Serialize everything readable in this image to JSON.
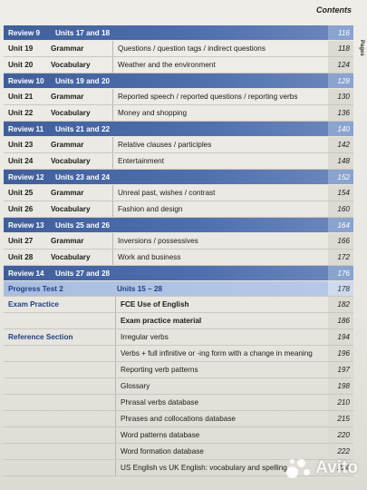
{
  "header": {
    "contents_title": "Contents",
    "side_tab": "Pages"
  },
  "rows": [
    {
      "kind": "review",
      "label": "Review 9",
      "units": "Units 17 and 18",
      "page": "116"
    },
    {
      "kind": "unit",
      "unit": "Unit 19",
      "type": "Grammar",
      "topic": "Questions / question tags / indirect questions",
      "page": "118"
    },
    {
      "kind": "unit",
      "unit": "Unit 20",
      "type": "Vocabulary",
      "topic": "Weather and the environment",
      "page": "124"
    },
    {
      "kind": "review",
      "label": "Review 10",
      "units": "Units 19 and 20",
      "page": "128"
    },
    {
      "kind": "unit",
      "unit": "Unit 21",
      "type": "Grammar",
      "topic": "Reported speech / reported questions / reporting verbs",
      "page": "130"
    },
    {
      "kind": "unit",
      "unit": "Unit 22",
      "type": "Vocabulary",
      "topic": "Money and shopping",
      "page": "136"
    },
    {
      "kind": "review",
      "label": "Review 11",
      "units": "Units 21 and 22",
      "page": "140"
    },
    {
      "kind": "unit",
      "unit": "Unit 23",
      "type": "Grammar",
      "topic": "Relative clauses / participles",
      "page": "142"
    },
    {
      "kind": "unit",
      "unit": "Unit 24",
      "type": "Vocabulary",
      "topic": "Entertainment",
      "page": "148"
    },
    {
      "kind": "review",
      "label": "Review 12",
      "units": "Units 23 and 24",
      "page": "152"
    },
    {
      "kind": "unit",
      "unit": "Unit 25",
      "type": "Grammar",
      "topic": "Unreal past, wishes / contrast",
      "page": "154"
    },
    {
      "kind": "unit",
      "unit": "Unit 26",
      "type": "Vocabulary",
      "topic": "Fashion and design",
      "page": "160"
    },
    {
      "kind": "review",
      "label": "Review 13",
      "units": "Units 25 and 26",
      "page": "164"
    },
    {
      "kind": "unit",
      "unit": "Unit 27",
      "type": "Grammar",
      "topic": "Inversions / possessives",
      "page": "166"
    },
    {
      "kind": "unit",
      "unit": "Unit 28",
      "type": "Vocabulary",
      "topic": "Work and business",
      "page": "172"
    },
    {
      "kind": "review",
      "label": "Review 14",
      "units": "Units 27 and 28",
      "page": "176"
    },
    {
      "kind": "progress",
      "label": "Progress Test 2",
      "units": "Units 15 – 28",
      "page": "178"
    },
    {
      "kind": "section",
      "left": "Exam Practice",
      "topic": "FCE Use of English",
      "bold": true,
      "page": "182"
    },
    {
      "kind": "section",
      "left": "",
      "topic": "Exam practice material",
      "bold": true,
      "page": "186"
    },
    {
      "kind": "section",
      "left": "Reference Section",
      "topic": "Irregular verbs",
      "bold": false,
      "page": "194"
    },
    {
      "kind": "section",
      "left": "",
      "topic": "Verbs + full infinitive or -ing form with a change in meaning",
      "bold": false,
      "page": "196"
    },
    {
      "kind": "section",
      "left": "",
      "topic": "Reporting verb patterns",
      "bold": false,
      "page": "197"
    },
    {
      "kind": "section",
      "left": "",
      "topic": "Glossary",
      "bold": false,
      "page": "198"
    },
    {
      "kind": "section",
      "left": "",
      "topic": "Phrasal verbs database",
      "bold": false,
      "page": "210"
    },
    {
      "kind": "section",
      "left": "",
      "topic": "Phrases and collocations database",
      "bold": false,
      "page": "215"
    },
    {
      "kind": "section",
      "left": "",
      "topic": "Word patterns database",
      "bold": false,
      "page": "220"
    },
    {
      "kind": "section",
      "left": "",
      "topic": "Word formation database",
      "bold": false,
      "page": "222"
    },
    {
      "kind": "section",
      "left": "",
      "topic": "US English vs UK English: vocabulary and spelling",
      "bold": false,
      "page": "224"
    }
  ],
  "watermark": {
    "text": "Avito"
  }
}
